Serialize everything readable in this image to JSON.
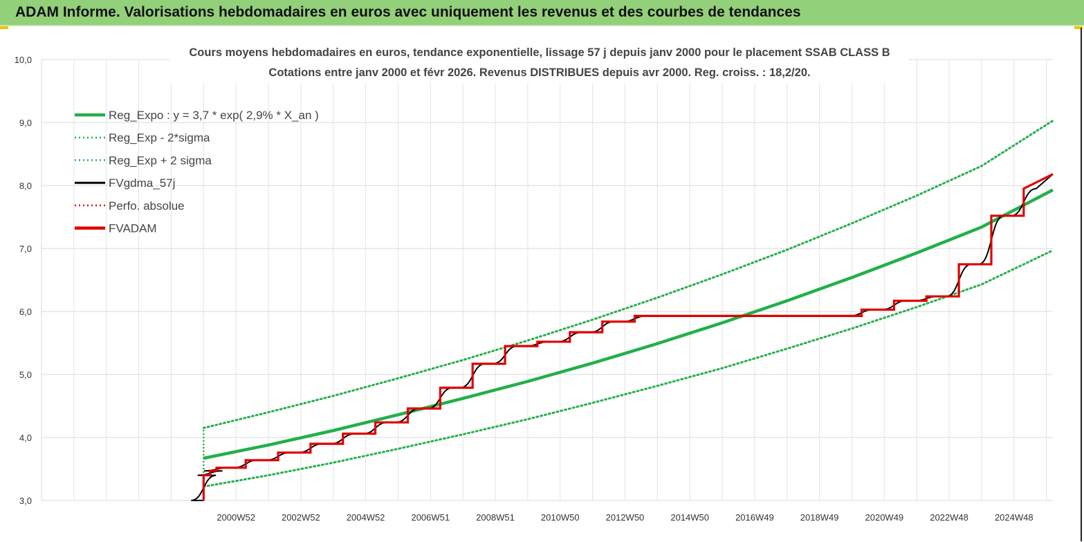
{
  "header": {
    "title": "ADAM Informe. Valorisations hebdomadaires en euros avec uniquement les revenus et des courbes de tendances",
    "background": "#92d07a"
  },
  "chart_data": {
    "type": "line",
    "title_line1": "Cours moyens hebdomadaires en euros, tendance exponentielle, lissage 57 j depuis janv 2000 pour le placement SSAB CLASS B",
    "title_line2": "Cotations entre janv 2000 et févr 2026. Revenus DISTRIBUES depuis avr 2000. Reg. croiss. : 18,2/20.",
    "ylim": [
      3.0,
      10.0
    ],
    "y_ticks": [
      "3,0",
      "4,0",
      "5,0",
      "6,0",
      "7,0",
      "8,0",
      "9,0",
      "10,0"
    ],
    "x_range": [
      1995.0,
      2026.2
    ],
    "x_tick_labels": [
      {
        "label": "2000W52",
        "x": 2001
      },
      {
        "label": "2002W52",
        "x": 2003
      },
      {
        "label": "2004W52",
        "x": 2005
      },
      {
        "label": "2006W51",
        "x": 2007
      },
      {
        "label": "2008W51",
        "x": 2009
      },
      {
        "label": "2010W50",
        "x": 2011
      },
      {
        "label": "2012W50",
        "x": 2013
      },
      {
        "label": "2014W50",
        "x": 2015
      },
      {
        "label": "2016W49",
        "x": 2017
      },
      {
        "label": "2018W49",
        "x": 2019
      },
      {
        "label": "2020W49",
        "x": 2021
      },
      {
        "label": "2022W48",
        "x": 2023
      },
      {
        "label": "2024W48",
        "x": 2025
      }
    ],
    "legend": [
      {
        "name": "Reg_Expo : y = 3,7 * exp( 2,9% *  X_an )",
        "color": "#22b04a",
        "style": "solid-thick"
      },
      {
        "name": "Reg_Exp - 2*sigma",
        "color": "#22b04a",
        "style": "dotted"
      },
      {
        "name": "Reg_Exp + 2 sigma",
        "color": "#22b04a",
        "style": "dotted"
      },
      {
        "name": "FVgdma_57j",
        "color": "#000000",
        "style": "solid"
      },
      {
        "name": "Perfo. absolue",
        "color": "#e00000",
        "style": "dotted"
      },
      {
        "name": "FVADAM",
        "color": "#e00000",
        "style": "solid-thick"
      }
    ],
    "series": [
      {
        "name": "Reg_Expo : y = 3,7 * exp( 2,9% *  X_an )",
        "x": [
          2000.0,
          2002,
          2004,
          2006,
          2008,
          2010,
          2012,
          2014,
          2016,
          2018,
          2020,
          2022,
          2024,
          2026.2
        ],
        "values": [
          3.67,
          3.88,
          4.11,
          4.36,
          4.62,
          4.89,
          5.18,
          5.49,
          5.82,
          6.17,
          6.54,
          6.93,
          7.34,
          7.93
        ]
      },
      {
        "name": "Reg_Exp - 2*sigma",
        "x": [
          2000.0,
          2002,
          2004,
          2006,
          2008,
          2010,
          2012,
          2014,
          2016,
          2018,
          2020,
          2022,
          2024,
          2026.2
        ],
        "values": [
          3.22,
          3.4,
          3.6,
          3.82,
          4.05,
          4.29,
          4.55,
          4.82,
          5.1,
          5.41,
          5.73,
          6.07,
          6.43,
          6.97
        ]
      },
      {
        "name": "Reg_Exp + 2 sigma",
        "x": [
          2000.0,
          2002,
          2004,
          2006,
          2008,
          2010,
          2012,
          2014,
          2016,
          2018,
          2020,
          2022,
          2024,
          2026.2
        ],
        "values": [
          4.15,
          4.4,
          4.66,
          4.94,
          5.23,
          5.54,
          5.87,
          6.22,
          6.59,
          6.98,
          7.4,
          7.84,
          8.31,
          9.03
        ]
      },
      {
        "name": "FVADAM",
        "x": [
          2000.0,
          2000.0,
          2000.2,
          2000.2,
          2000.4,
          2000.4,
          2001.3,
          2001.3,
          2002.3,
          2002.3,
          2003.3,
          2003.3,
          2004.3,
          2004.3,
          2005.3,
          2005.3,
          2006.3,
          2006.3,
          2007.3,
          2007.3,
          2008.3,
          2008.3,
          2009.3,
          2009.3,
          2010.3,
          2010.3,
          2011.3,
          2011.3,
          2012.3,
          2012.3,
          2013.3,
          2013.3,
          2020.3,
          2020.3,
          2021.3,
          2021.3,
          2022.3,
          2022.3,
          2023.3,
          2023.3,
          2024.3,
          2024.3,
          2025.3,
          2025.3,
          2026.2
        ],
        "values": [
          3.0,
          3.4,
          3.4,
          3.47,
          3.47,
          3.52,
          3.52,
          3.64,
          3.64,
          3.76,
          3.76,
          3.9,
          3.9,
          4.06,
          4.06,
          4.24,
          4.24,
          4.46,
          4.46,
          4.79,
          4.79,
          5.17,
          5.17,
          5.45,
          5.45,
          5.52,
          5.52,
          5.67,
          5.67,
          5.84,
          5.84,
          5.93,
          5.93,
          6.03,
          6.03,
          6.17,
          6.17,
          6.24,
          6.24,
          6.75,
          6.75,
          7.52,
          7.52,
          7.95,
          8.18
        ]
      }
    ],
    "grid": true,
    "legend_position": "top-left"
  }
}
